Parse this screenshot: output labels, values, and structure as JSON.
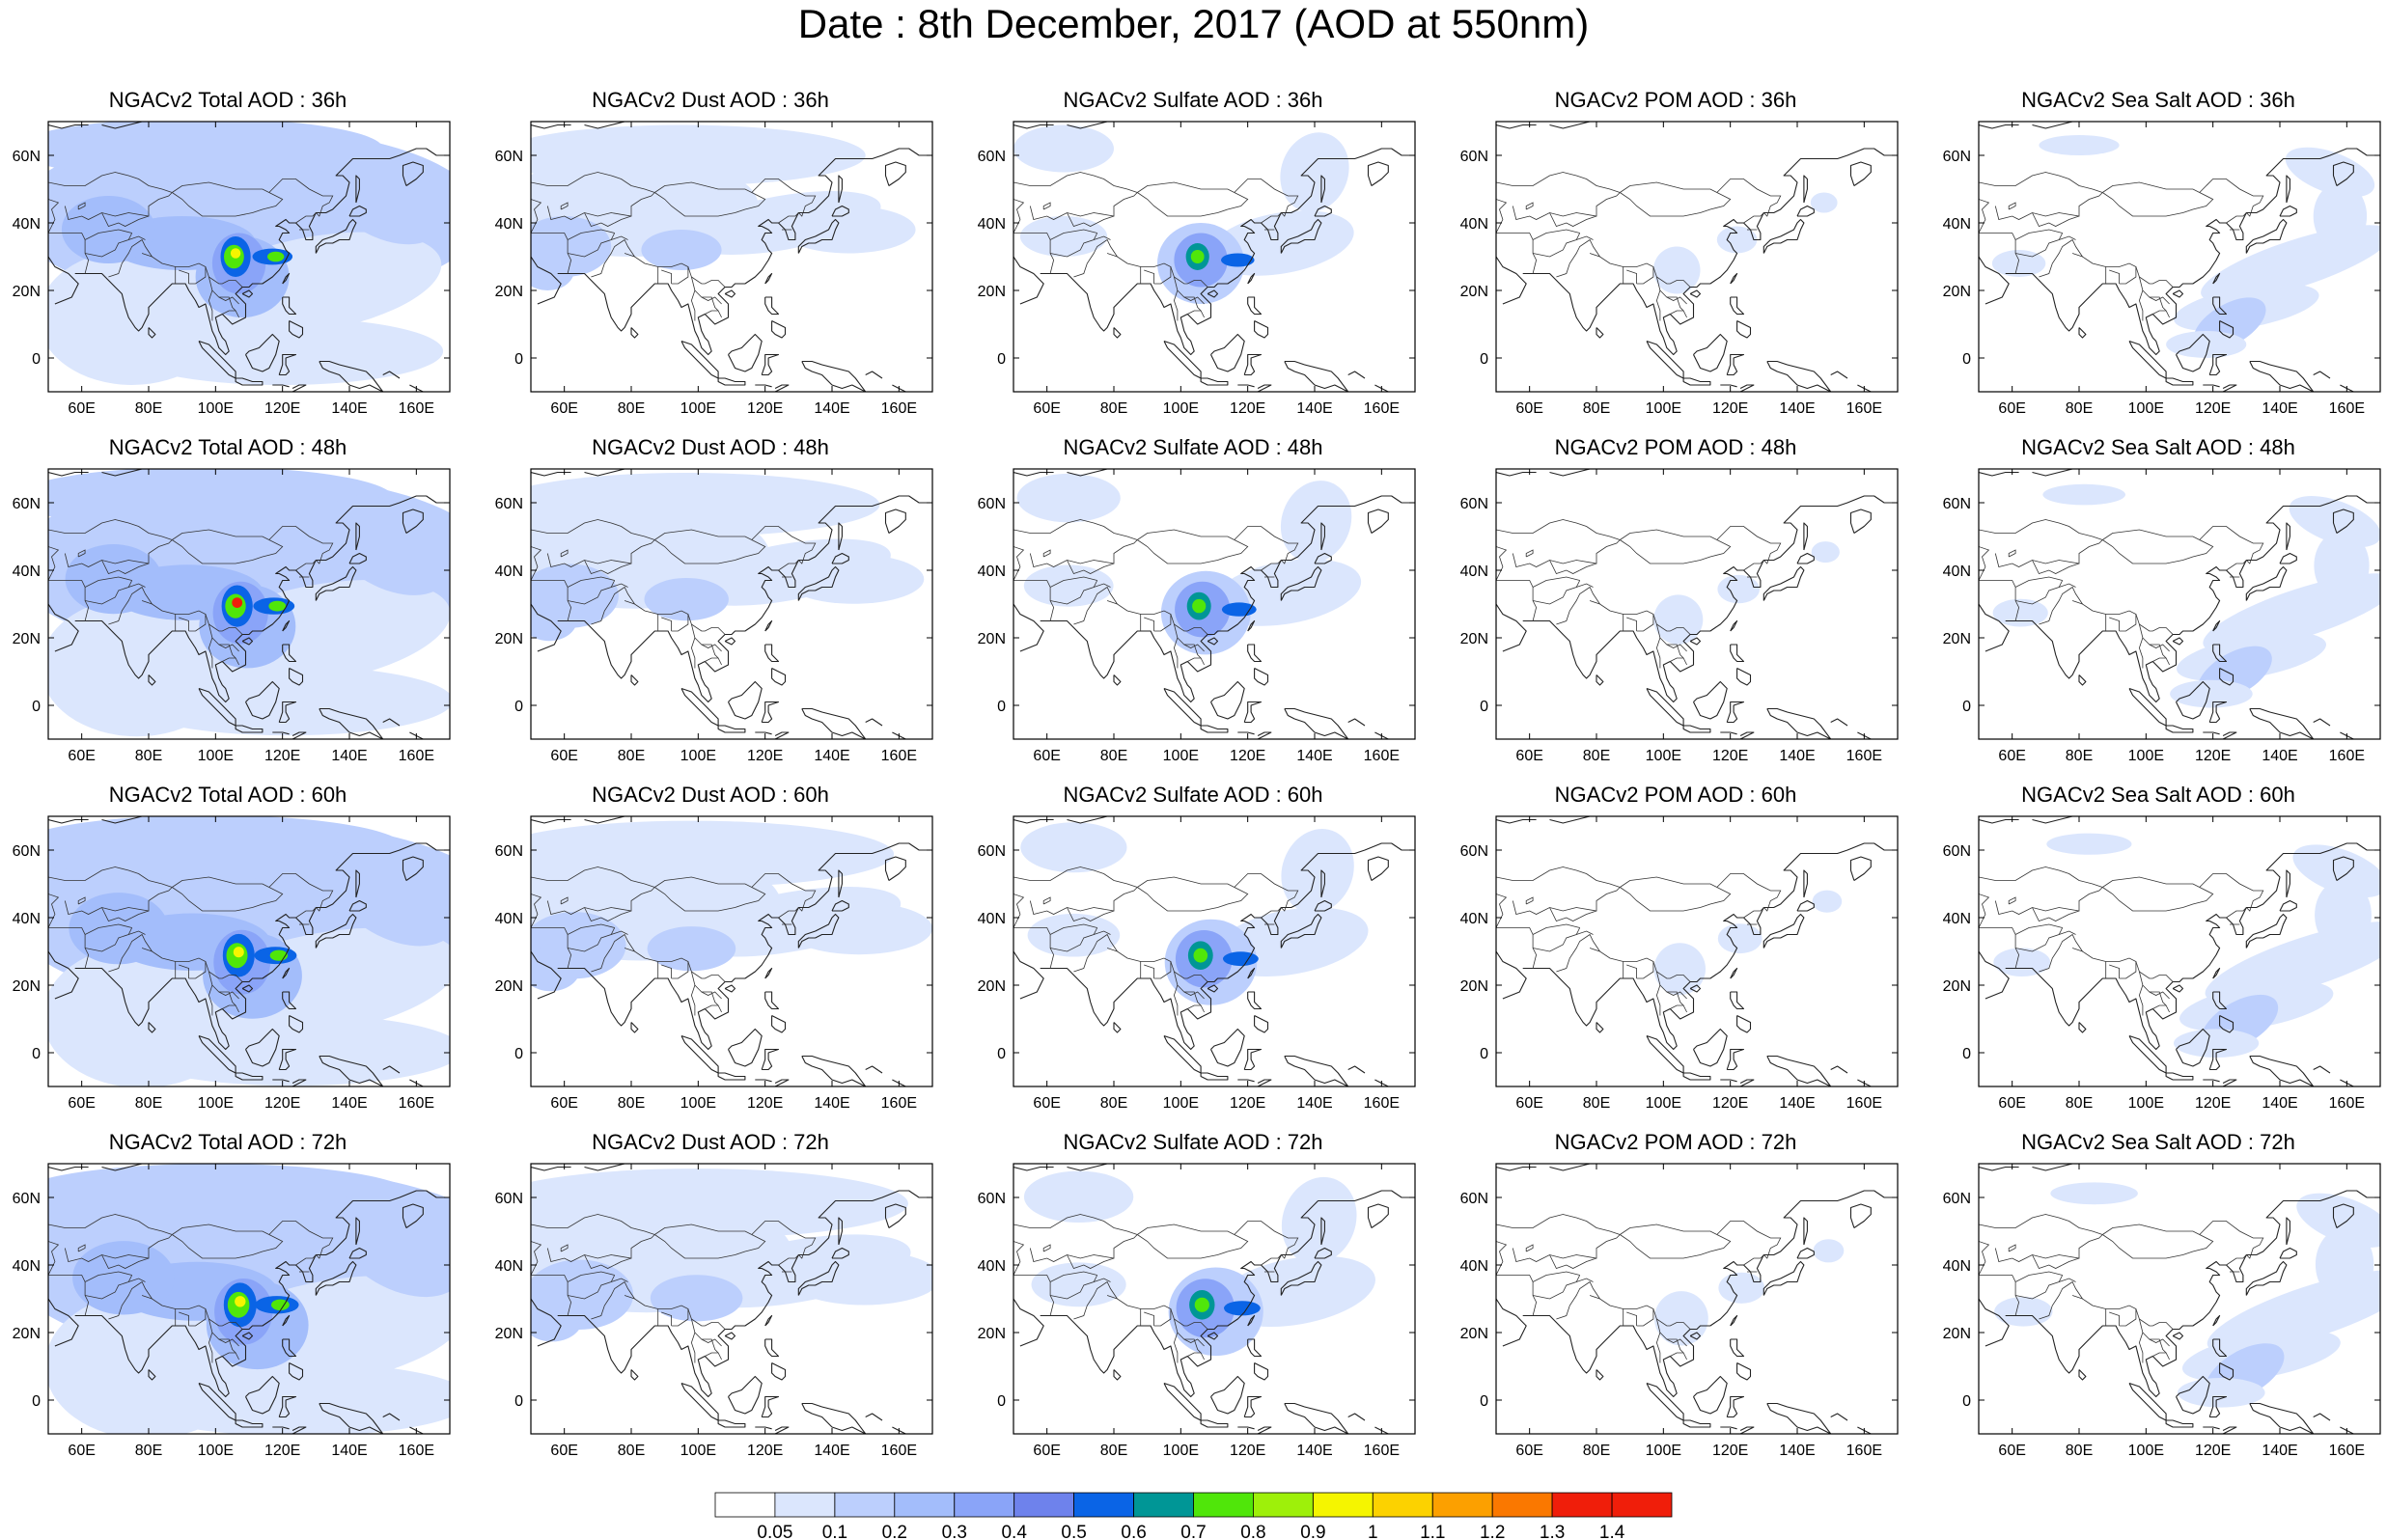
{
  "title": "Date : 8th December, 2017 (AOD at 550nm)",
  "panels": [
    [
      {
        "title": "NGACv2 Total AOD : 36h"
      },
      {
        "title": "NGACv2 Dust AOD : 36h"
      },
      {
        "title": "NGACv2 Sulfate AOD : 36h"
      },
      {
        "title": "NGACv2 POM AOD : 36h"
      },
      {
        "title": "NGACv2 Sea Salt AOD : 36h"
      }
    ],
    [
      {
        "title": "NGACv2 Total AOD : 48h"
      },
      {
        "title": "NGACv2 Dust AOD : 48h"
      },
      {
        "title": "NGACv2 Sulfate AOD : 48h"
      },
      {
        "title": "NGACv2 POM AOD : 48h"
      },
      {
        "title": "NGACv2 Sea Salt AOD : 48h"
      }
    ],
    [
      {
        "title": "NGACv2 Total AOD : 60h"
      },
      {
        "title": "NGACv2 Dust AOD : 60h"
      },
      {
        "title": "NGACv2 Sulfate AOD : 60h"
      },
      {
        "title": "NGACv2 POM AOD : 60h"
      },
      {
        "title": "NGACv2 Sea Salt AOD : 60h"
      }
    ],
    [
      {
        "title": "NGACv2 Total AOD : 72h"
      },
      {
        "title": "NGACv2 Dust AOD : 72h"
      },
      {
        "title": "NGACv2 Sulfate AOD : 72h"
      },
      {
        "title": "NGACv2 POM AOD : 72h"
      },
      {
        "title": "NGACv2 Sea Salt  AOD : 72h"
      }
    ]
  ],
  "lon_ticks": [
    "60E",
    "80E",
    "100E",
    "120E",
    "140E",
    "160E"
  ],
  "lat_ticks": [
    "60N",
    "40N",
    "20N",
    "0"
  ],
  "map_extent": {
    "lon_min": 50,
    "lon_max": 170,
    "lat_min": -10,
    "lat_max": 70
  },
  "colorbar": {
    "labels": [
      "0.05",
      "0.1",
      "0.2",
      "0.3",
      "0.4",
      "0.5",
      "0.6",
      "0.7",
      "0.8",
      "0.9",
      "1",
      "1.1",
      "1.2",
      "1.3",
      "1.4"
    ],
    "colors": [
      "#ffffff",
      "#dbe6fd",
      "#bccffd",
      "#a3bdfb",
      "#8aa4f8",
      "#6e82ec",
      "#0a64e6",
      "#009696",
      "#50e60a",
      "#9ef00a",
      "#f5f500",
      "#fcd200",
      "#fca000",
      "#fa7800",
      "#f01e0a"
    ]
  }
}
